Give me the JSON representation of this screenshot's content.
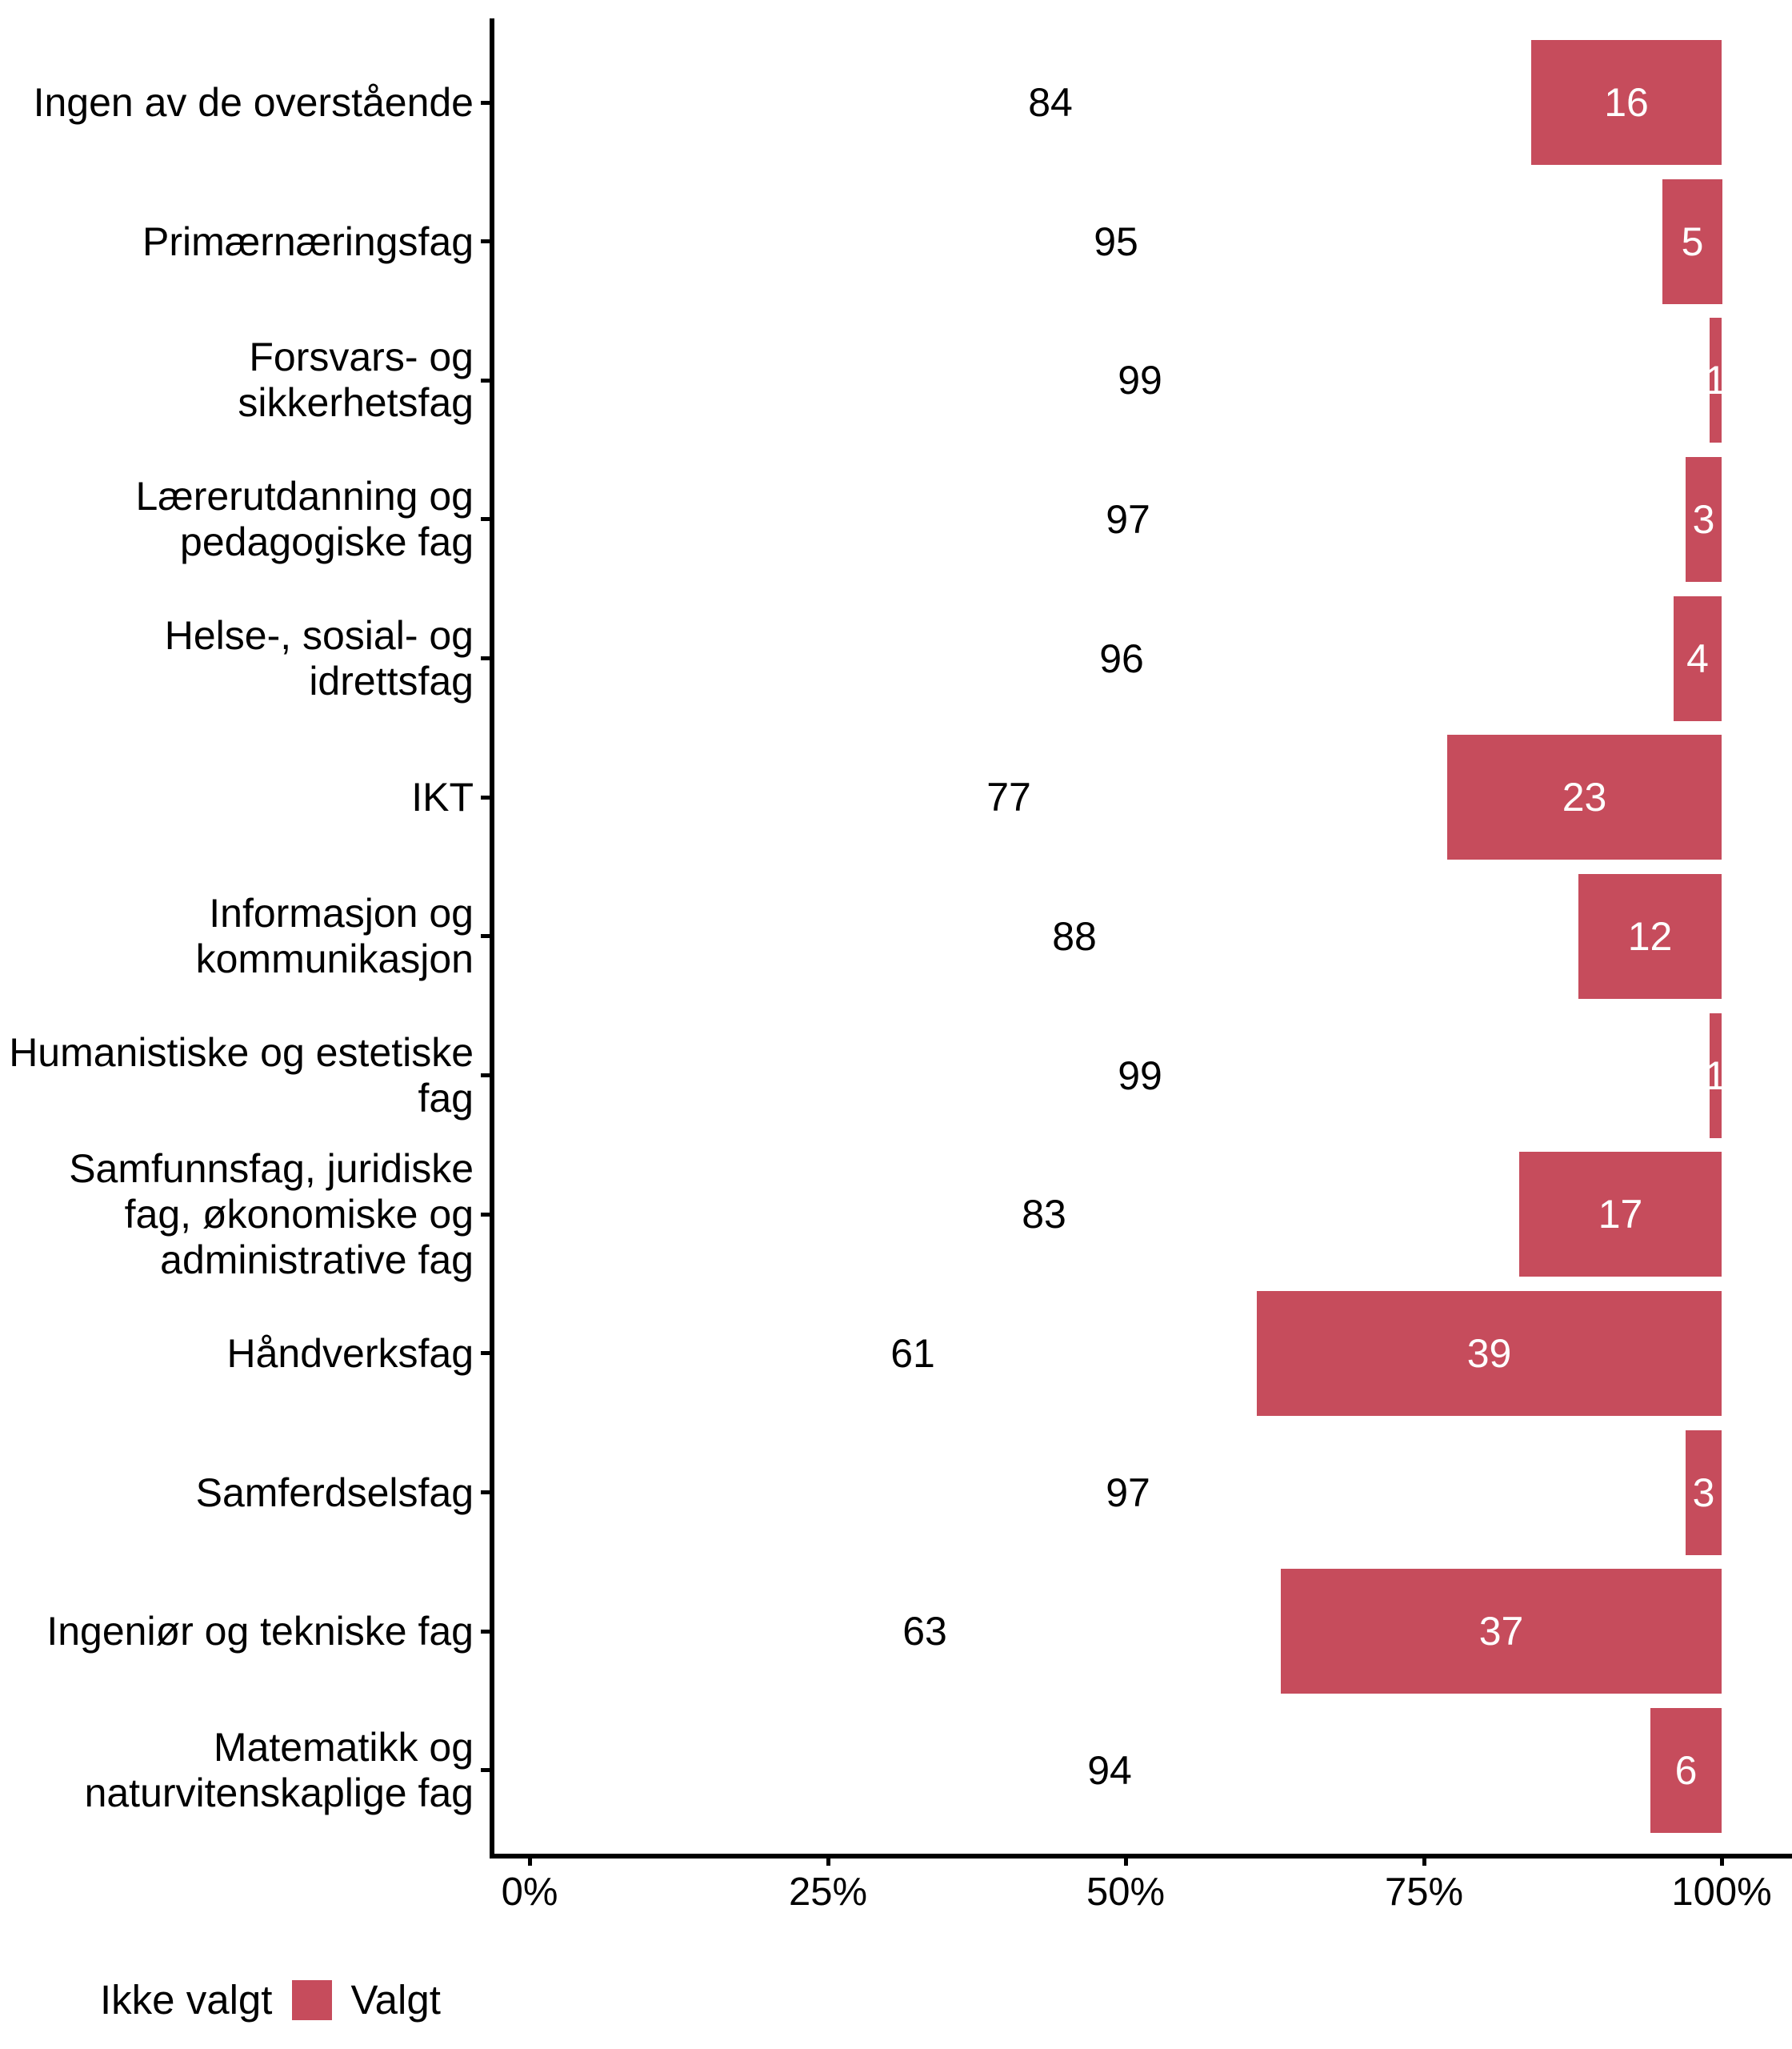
{
  "chart_data": {
    "type": "bar",
    "orientation": "horizontal",
    "stacked": true,
    "title": "",
    "xlabel": "",
    "ylabel": "",
    "xlim": [
      0,
      100
    ],
    "grid": false,
    "legend_position": "bottom-left",
    "x_ticks": [
      {
        "value": 0,
        "label": "0%"
      },
      {
        "value": 25,
        "label": "25%"
      },
      {
        "value": 50,
        "label": "50%"
      },
      {
        "value": 75,
        "label": "75%"
      },
      {
        "value": 100,
        "label": "100%"
      }
    ],
    "series": [
      {
        "name": "Ikke valgt",
        "color": "#ffffff",
        "label_color": "#000000"
      },
      {
        "name": "Valgt",
        "color": "#c64c5c",
        "label_color": "#ffffff"
      }
    ],
    "rows": [
      {
        "category": "Ingen av de overstående",
        "ikke_valgt": 84,
        "valgt": 16
      },
      {
        "category": "Primærnæringsfag",
        "ikke_valgt": 95,
        "valgt": 5
      },
      {
        "category": "Forsvars- og\nsikkerhetsfag",
        "ikke_valgt": 99,
        "valgt": 1
      },
      {
        "category": "Lærerutdanning og\npedagogiske fag",
        "ikke_valgt": 97,
        "valgt": 3
      },
      {
        "category": "Helse-, sosial- og\nidrettsfag",
        "ikke_valgt": 96,
        "valgt": 4
      },
      {
        "category": "IKT",
        "ikke_valgt": 77,
        "valgt": 23
      },
      {
        "category": "Informasjon og\nkommunikasjon",
        "ikke_valgt": 88,
        "valgt": 12
      },
      {
        "category": "Humanistiske og estetiske\nfag",
        "ikke_valgt": 99,
        "valgt": 1
      },
      {
        "category": "Samfunnsfag, juridiske\nfag, økonomiske og\nadministrative fag",
        "ikke_valgt": 83,
        "valgt": 17
      },
      {
        "category": "Håndverksfag",
        "ikke_valgt": 61,
        "valgt": 39
      },
      {
        "category": "Samferdselsfag",
        "ikke_valgt": 97,
        "valgt": 3
      },
      {
        "category": "Ingeniør og tekniske fag",
        "ikke_valgt": 63,
        "valgt": 37
      },
      {
        "category": "Matematikk og\nnaturvitenskaplige fag",
        "ikke_valgt": 94,
        "valgt": 6
      }
    ]
  },
  "legend": {
    "items": [
      {
        "label": "Ikke valgt",
        "color": "#ffffff"
      },
      {
        "label": "Valgt",
        "color": "#c64c5c"
      }
    ]
  },
  "colors": {
    "valgt": "#c64c5c",
    "ikke_valgt": "#ffffff",
    "axis": "#000000",
    "text": "#000000",
    "background": "#ffffff"
  }
}
